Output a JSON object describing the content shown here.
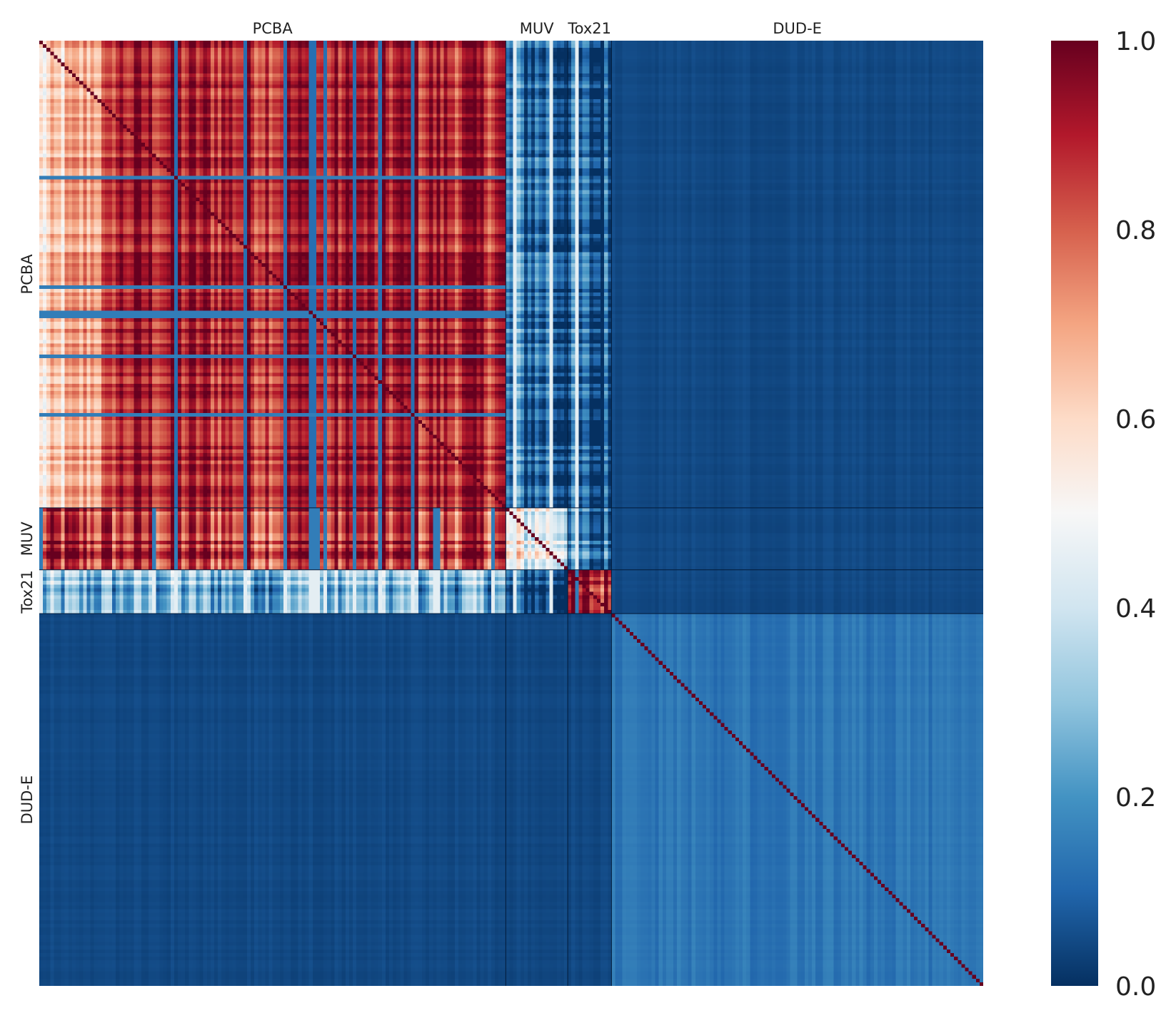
{
  "chart_data": {
    "type": "heatmap",
    "title": "",
    "xlabel": "",
    "ylabel": "",
    "groups": [
      {
        "name": "PCBA",
        "count": 128
      },
      {
        "name": "MUV",
        "count": 17
      },
      {
        "name": "Tox21",
        "count": 12
      },
      {
        "name": "DUD-E",
        "count": 102
      }
    ],
    "block_mean_values": [
      [
        0.9,
        0.12,
        0.05,
        0.03
      ],
      [
        0.88,
        0.5,
        0.12,
        0.03
      ],
      [
        0.25,
        0.05,
        0.88,
        0.03
      ],
      [
        0.03,
        0.03,
        0.03,
        0.1
      ]
    ],
    "block_notes": {
      "PCBA-PCBA": "mostly 0.8-1.0, early columns ~0.5-0.7",
      "PCBA-MUV": "sub-block ~0.1-0.4",
      "MUV-PCBA": "mostly 0.8-1.0 with streaks ~0.1-0.5",
      "Tox21-PCBA": "~0.1-0.35",
      "DUD-E-DUD-E": "~0.0-0.15, diagonal 1.0"
    },
    "diagonal_value": 1.0,
    "colormap": "RdBu_r",
    "colorscale": [
      "#053061",
      "#2166ac",
      "#4393c3",
      "#92c5de",
      "#d1e5f0",
      "#f7f7f7",
      "#fddbc7",
      "#f4a582",
      "#d6604d",
      "#b2182b",
      "#67001f"
    ],
    "colorbar": {
      "min": 0.0,
      "max": 1.0,
      "ticks": [
        "1.0",
        "0.8",
        "0.6",
        "0.4",
        "0.2",
        "0.0"
      ]
    }
  }
}
